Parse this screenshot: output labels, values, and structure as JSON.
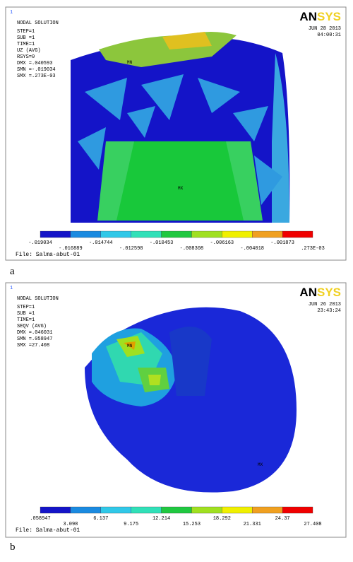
{
  "panels": [
    {
      "label": "a",
      "number": "1",
      "title": "NODAL SOLUTION",
      "lines": [
        "STEP=1",
        "SUB =1",
        "TIME=1",
        "UZ       (AVG)",
        "RSYS=0",
        "DMX =.040593",
        "SMN =-.019034",
        "SMX =.273E-03"
      ],
      "date": "JUN 28 2013",
      "time": "04:00:31",
      "logo": "ANSYS",
      "mn": "MN",
      "mx": "MX",
      "legend_upper": [
        "-.019034",
        "-.014744",
        "-.010453",
        "-.006163",
        "-.001873"
      ],
      "legend_lower": [
        "-.016889",
        "-.012598",
        "-.008308",
        "-.004018",
        ".273E-03"
      ],
      "file": "File: Salma-abut-01"
    },
    {
      "label": "b",
      "number": "1",
      "title": "NODAL SOLUTION",
      "lines": [
        "STEP=1",
        "SUB =1",
        "TIME=1",
        "SEQV     (AVG)",
        "DMX =.046031",
        "SMN =.058947",
        "SMX =27.408"
      ],
      "date": "JUN 26 2013",
      "time": "23:43:24",
      "logo": "ANSYS",
      "mn": "MN",
      "mx": "MX",
      "legend_upper": [
        ".058947",
        "6.137",
        "12.214",
        "18.292",
        "24.37"
      ],
      "legend_lower": [
        "3.098",
        "9.175",
        "15.253",
        "21.331",
        "27.408"
      ],
      "file": "File: Salma-abut-01"
    }
  ]
}
